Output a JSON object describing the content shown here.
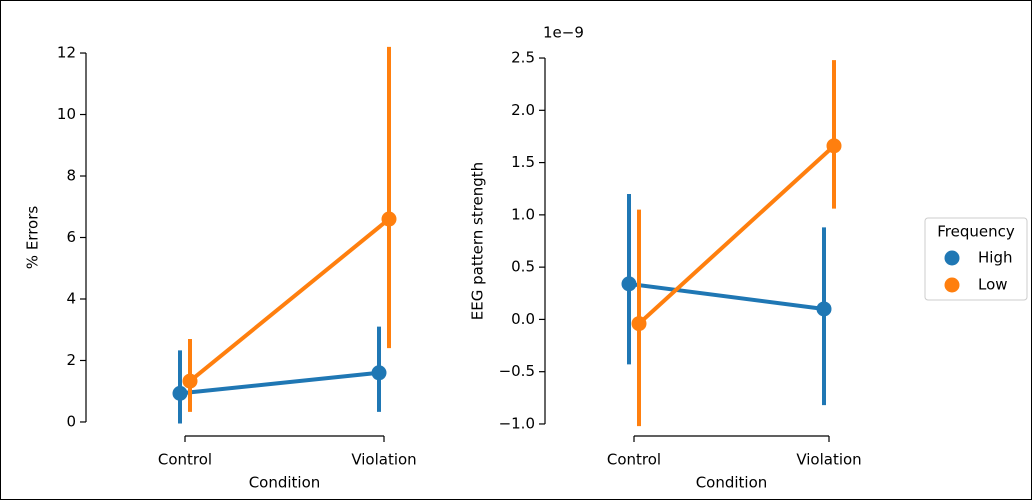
{
  "chart_data": [
    {
      "type": "line",
      "x_label": "Condition",
      "y_label": "% Errors",
      "categories": [
        "Control",
        "Violation"
      ],
      "ylim": [
        -0.3,
        12.3
      ],
      "yticks": [
        0,
        2,
        4,
        6,
        8,
        10,
        12
      ],
      "series": [
        {
          "color": "#1f77b4",
          "values": [
            0.93,
            1.6
          ],
          "ci_low": [
            -0.05,
            0.33
          ],
          "ci_high": [
            2.33,
            3.1
          ]
        },
        {
          "color": "#ff7f0e",
          "values": [
            1.33,
            6.6
          ],
          "ci_low": [
            0.33,
            2.4
          ],
          "ci_high": [
            2.7,
            12.2
          ]
        }
      ]
    },
    {
      "type": "line",
      "x_label": "Condition",
      "y_label": "EEG pattern strength",
      "offset_text": "1e−9",
      "categories": [
        "Control",
        "Violation"
      ],
      "ylim": [
        -1.05,
        2.55
      ],
      "yticks": [
        {
          "value": -1.0,
          "label": "−1.0"
        },
        {
          "value": -0.5,
          "label": "−0.5"
        },
        {
          "value": 0,
          "label": "0.0"
        },
        0.5,
        {
          "value": 1.0,
          "label": "1.0"
        },
        1.5,
        {
          "value": 2.0,
          "label": "2.0"
        },
        2.5
      ],
      "legend": {
        "title": "Frequency",
        "loc": "center right"
      },
      "series": [
        {
          "name": "High",
          "color": "#1f77b4",
          "values": [
            0.34,
            0.1
          ],
          "ci_low": [
            -0.43,
            -0.82
          ],
          "ci_high": [
            1.2,
            0.88
          ]
        },
        {
          "name": "Low",
          "color": "#ff7f0e",
          "values": [
            -0.04,
            1.66
          ],
          "ci_low": [
            -1.02,
            1.06
          ],
          "ci_high": [
            1.05,
            2.48
          ]
        }
      ]
    }
  ]
}
